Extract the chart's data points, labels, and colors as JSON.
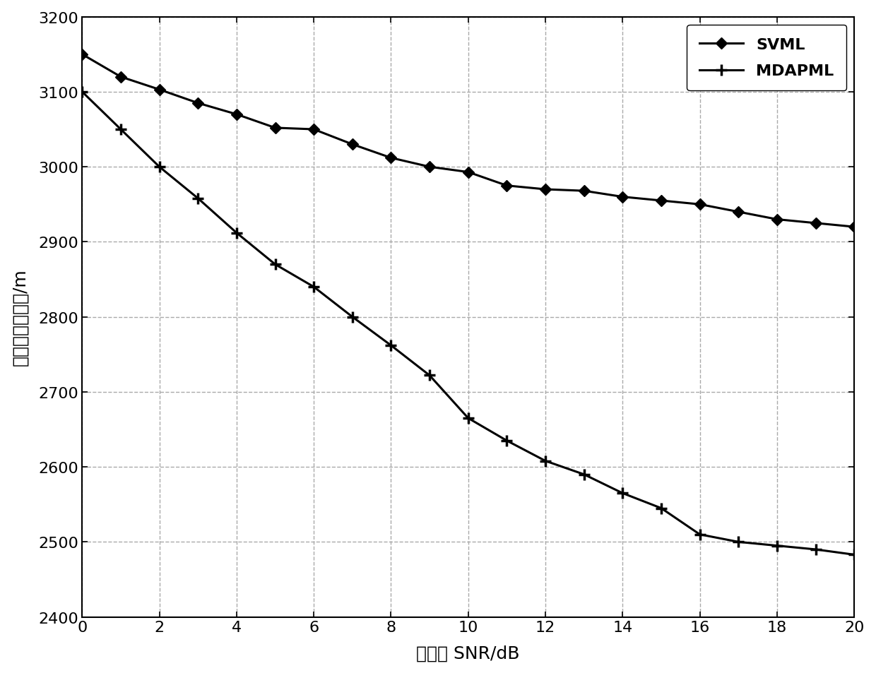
{
  "x": [
    0,
    1,
    2,
    3,
    4,
    5,
    6,
    7,
    8,
    9,
    10,
    11,
    12,
    13,
    14,
    15,
    16,
    17,
    18,
    19,
    20
  ],
  "svml": [
    3150,
    3120,
    3103,
    3085,
    3070,
    3052,
    3050,
    3030,
    3012,
    3000,
    2993,
    2975,
    2970,
    2968,
    2960,
    2955,
    2950,
    2940,
    2930,
    2925,
    2920
  ],
  "mdapml": [
    3100,
    3050,
    3000,
    2958,
    2912,
    2870,
    2840,
    2800,
    2762,
    2722,
    2665,
    2635,
    2608,
    2590,
    2565,
    2545,
    2510,
    2500,
    2495,
    2490,
    2483
  ],
  "xlabel": "信噪比 SNR/dB",
  "ylabel": "测高均方根误差/m",
  "ylim": [
    2400,
    3200
  ],
  "xlim": [
    0,
    20
  ],
  "line_color": "#000000",
  "bg_color": "#ffffff",
  "grid_color": "#aaaaaa",
  "legend_svml": "SVML",
  "legend_mdapml": "MDAPML",
  "label_fontsize": 18,
  "tick_fontsize": 16,
  "legend_fontsize": 16
}
